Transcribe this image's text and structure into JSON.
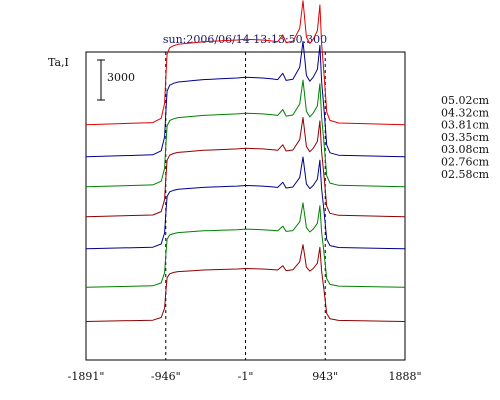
{
  "chart_data": {
    "type": "line",
    "title": "sun:2006/06/14 13:13:50.300",
    "ylabel": "Ta,I",
    "scale_bar_label": "3000",
    "scale_bar_value": 3000,
    "x_tick_labels": [
      "-1891\"",
      "-946\"",
      "-1\"",
      "943\"",
      "1888\""
    ],
    "x_ticks": [
      -1891,
      -946,
      -1,
      943,
      1888
    ],
    "xlim": [
      -1891,
      1888
    ],
    "ylim": [
      0,
      21600
    ],
    "guide_lines_x": [
      -946,
      -1,
      943
    ],
    "grid": false,
    "legend_position": "right",
    "profile_x": [
      -1891,
      -1100,
      -1000,
      -960,
      -946,
      -930,
      -900,
      -850,
      -800,
      -700,
      -600,
      -500,
      -400,
      -300,
      -200,
      -100,
      -1,
      100,
      200,
      300,
      380,
      440,
      480,
      560,
      640,
      680,
      720,
      760,
      800,
      850,
      880,
      900,
      920,
      943,
      960,
      1000,
      1100,
      1888
    ],
    "series": [
      {
        "name": "05.02cm",
        "color": "#e00000",
        "baseline": 16500,
        "scale": 1.0
      },
      {
        "name": "04.32cm",
        "color": "#000090",
        "baseline": 14250,
        "scale": 0.93
      },
      {
        "name": "03.81cm",
        "color": "#008000",
        "baseline": 12150,
        "scale": 0.86
      },
      {
        "name": "03.35cm",
        "color": "#900000",
        "baseline": 10050,
        "scale": 0.8
      },
      {
        "name": "03.08cm",
        "color": "#000090",
        "baseline": 7800,
        "scale": 0.74
      },
      {
        "name": "02.76cm",
        "color": "#008000",
        "baseline": 5100,
        "scale": 0.68
      },
      {
        "name": "02.58cm",
        "color": "#900000",
        "baseline": 2700,
        "scale": 0.62
      }
    ],
    "profile_shape": [
      0,
      150,
      450,
      1500,
      3300,
      4950,
      5400,
      5550,
      5640,
      5700,
      5760,
      5820,
      5850,
      5880,
      5910,
      5940,
      6000,
      5970,
      5940,
      5880,
      5820,
      6300,
      5760,
      5850,
      6750,
      8700,
      6150,
      5700,
      6000,
      6600,
      8400,
      5700,
      4200,
      2400,
      900,
      300,
      120,
      0
    ]
  }
}
